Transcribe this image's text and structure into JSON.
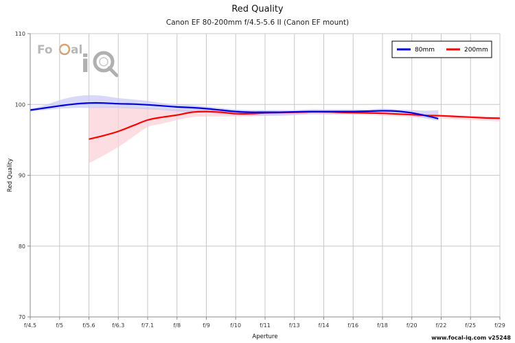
{
  "chart_data": {
    "type": "line",
    "title": "Red Quality",
    "subtitle": "Canon EF 80-200mm f/4.5-5.6 II (Canon EF mount)",
    "xlabel": "Aperture",
    "ylabel": "Red Quality",
    "categories": [
      "f/4.5",
      "f/5",
      "f/5.6",
      "f/6.3",
      "f/7.1",
      "f/8",
      "f/9",
      "f/10",
      "f/11",
      "f/13",
      "f/14",
      "f/16",
      "f/18",
      "f/20",
      "f/22",
      "f/25",
      "f/29"
    ],
    "yticks": [
      70,
      80,
      90,
      100,
      110
    ],
    "ylim": [
      70,
      110
    ],
    "grid": true,
    "legend_position": "top-right",
    "series": [
      {
        "name": "80mm",
        "color": "#0000dd",
        "band_color": "#c8c8f5",
        "x": [
          0,
          0.5,
          1,
          1.5,
          2,
          2.5,
          3,
          3.5,
          4,
          4.5,
          5,
          5.5,
          6,
          6.5,
          7,
          7.5,
          8,
          8.5,
          9,
          9.5,
          10,
          10.5,
          11,
          11.5,
          12,
          12.5,
          13,
          13.5,
          13.9
        ],
        "values": [
          99.2,
          99.5,
          99.8,
          100.05,
          100.2,
          100.2,
          100.1,
          100.05,
          99.95,
          99.8,
          99.65,
          99.55,
          99.4,
          99.2,
          99.0,
          98.9,
          98.9,
          98.9,
          98.95,
          99.0,
          99.0,
          99.0,
          99.0,
          99.05,
          99.1,
          99.05,
          98.8,
          98.4,
          98.0
        ],
        "band_upper": [
          99.4,
          99.9,
          100.6,
          101.1,
          101.3,
          101.2,
          100.9,
          100.7,
          100.5,
          100.2,
          100.0,
          99.9,
          99.7,
          99.5,
          99.3,
          99.2,
          99.2,
          99.2,
          99.2,
          99.3,
          99.3,
          99.3,
          99.3,
          99.3,
          99.4,
          99.3,
          99.2,
          99.1,
          99.2
        ],
        "band_lower": [
          99.0,
          99.2,
          99.4,
          99.5,
          99.5,
          99.5,
          99.5,
          99.4,
          99.3,
          99.2,
          99.0,
          98.9,
          98.8,
          98.6,
          98.5,
          98.4,
          98.4,
          98.4,
          98.5,
          98.6,
          98.6,
          98.6,
          98.6,
          98.7,
          98.7,
          98.6,
          98.4,
          98.0,
          97.7
        ]
      },
      {
        "name": "200mm",
        "color": "#ff0000",
        "band_color": "#f9cfd5",
        "x": [
          2,
          2.5,
          3,
          3.5,
          4,
          4.5,
          5,
          5.5,
          6,
          6.5,
          7,
          7.5,
          8,
          8.5,
          9,
          9.5,
          10,
          10.5,
          11,
          11.5,
          12,
          12.5,
          13,
          13.5,
          14,
          14.5,
          15,
          15.5,
          16
        ],
        "values": [
          95.1,
          95.6,
          96.2,
          97.0,
          97.8,
          98.2,
          98.5,
          98.9,
          99.0,
          98.9,
          98.7,
          98.7,
          98.8,
          98.85,
          98.9,
          98.95,
          98.95,
          98.9,
          98.85,
          98.8,
          98.75,
          98.65,
          98.55,
          98.45,
          98.4,
          98.3,
          98.2,
          98.1,
          98.05
        ],
        "band_upper": [
          99.6,
          99.7,
          99.7,
          99.6,
          99.5,
          99.4,
          99.3,
          99.3,
          99.3,
          99.2,
          99.1,
          99.1,
          99.1,
          99.1,
          99.1,
          99.1,
          99.1,
          99.1,
          99.0,
          99.0,
          98.9,
          98.8,
          98.8,
          98.7,
          98.6,
          98.5,
          98.4,
          98.3,
          98.3
        ],
        "band_lower": [
          91.7,
          92.8,
          94.0,
          95.4,
          96.8,
          97.3,
          97.8,
          98.2,
          98.3,
          98.3,
          98.3,
          98.3,
          98.4,
          98.5,
          98.6,
          98.7,
          98.7,
          98.6,
          98.6,
          98.5,
          98.4,
          98.3,
          98.2,
          98.1,
          98.0,
          97.9,
          97.8,
          97.7,
          97.6
        ]
      }
    ]
  },
  "logo": {
    "text_focal": "FoCal",
    "text_iq": "iq"
  },
  "footer": {
    "watermark": "www.focal-iq.com  v25248"
  },
  "colors": {
    "grid": "#c8c8c8",
    "axis": "#888888"
  }
}
